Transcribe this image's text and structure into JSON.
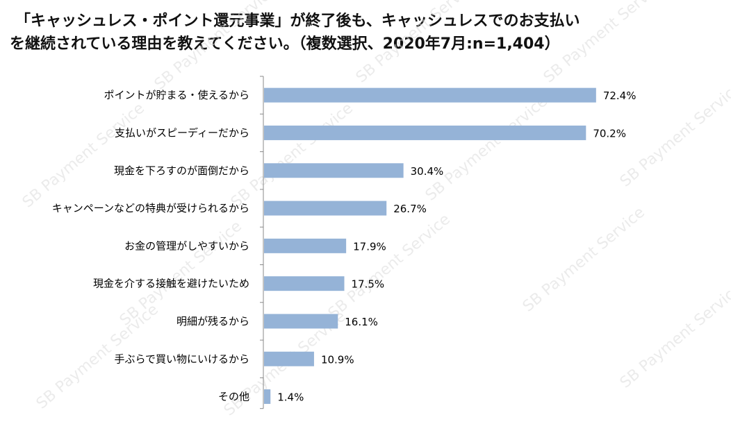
{
  "title": {
    "line1": "「キャッシュレス・ポイント還元事業」が終了後も、キャッシュレスでのお支払い",
    "line2": "を継続されている理由を教えてください。（複数選択、2020年7月:n=1,404）"
  },
  "watermark": "SB Payment Service",
  "chart_data": {
    "type": "bar",
    "orientation": "horizontal",
    "categories": [
      "ポイントが貯まる・使えるから",
      "支払いがスピーディーだから",
      "現金を下ろすのが面倒だから",
      "キャンペーンなどの特典が受けられるから",
      "お金の管理がしやすいから",
      "現金を介する接触を避けたいため",
      "明細が残るから",
      "手ぶらで買い物にいけるから",
      "その他"
    ],
    "values": [
      72.4,
      70.2,
      30.4,
      26.7,
      17.9,
      17.5,
      16.1,
      10.9,
      1.4
    ],
    "value_labels": [
      "72.4%",
      "70.2%",
      "30.4%",
      "26.7%",
      "17.9%",
      "17.5%",
      "16.1%",
      "10.9%",
      "1.4%"
    ],
    "xlim": [
      0,
      80
    ],
    "bar_color": "#95b3d7",
    "axis_color": "#888888",
    "grid": false,
    "legend": "none"
  }
}
